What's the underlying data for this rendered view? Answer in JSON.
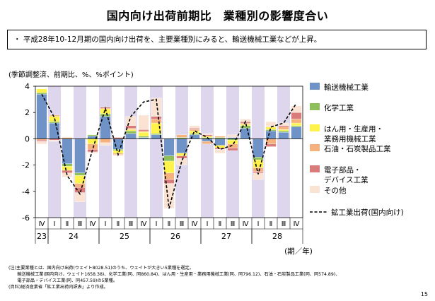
{
  "title": "国内向け出荷前期比　業種別の影響度合い",
  "summary": "・ 平成28年10-12月期の国内向け出荷を、主要業種別にみると、輸送機械工業などが上昇。",
  "unit_label": "(季節調整済、前期比、%、%ポイント)",
  "notes": [
    "(注)主要業種とは、国内向け出荷(ウェイト8028.51)のうち、ウェイトが大きい5業種を選定。",
    "　　輸送機械工業(国内向け、ウェイト1658.38)、化学工業(同、同860.84)、はん用・生産用・業務用機械工業(同、同796.12)、石油・石炭製品工業(同、同574.89)、",
    "　　電子部品・デバイス工業(同、同457.59)の5業種。",
    "(資料)経済産業省「鉱工業出荷内訳表」より作成。"
  ],
  "page_number": "15",
  "colors": {
    "transport": "#6f93c6",
    "chemical": "#8fbf5a",
    "machinery": "#fff24a",
    "petroleum": "#f5b27e",
    "electronic": "#d97b7b",
    "other": "#fbe3d4",
    "shade": "#ddd6ec",
    "line": "#000000"
  },
  "chart_data": {
    "type": "bar",
    "stacked": true,
    "ylim": [
      -6,
      4
    ],
    "yticks": [
      -6,
      -4,
      -2,
      0,
      2,
      4
    ],
    "quarter_labels": [
      "Ⅳ",
      "Ⅰ",
      "Ⅱ",
      "Ⅲ",
      "Ⅳ",
      "Ⅰ",
      "Ⅱ",
      "Ⅲ",
      "Ⅳ",
      "Ⅰ",
      "Ⅱ",
      "Ⅲ",
      "Ⅳ",
      "Ⅰ",
      "Ⅱ",
      "Ⅲ",
      "Ⅳ",
      "Ⅰ",
      "Ⅱ",
      "Ⅲ",
      "Ⅳ"
    ],
    "year_labels": [
      {
        "label": "23",
        "start": 0,
        "end": 0
      },
      {
        "label": "24",
        "start": 1,
        "end": 4
      },
      {
        "label": "25",
        "start": 5,
        "end": 8
      },
      {
        "label": "26",
        "start": 9,
        "end": 12
      },
      {
        "label": "27",
        "start": 13,
        "end": 16
      },
      {
        "label": "28",
        "start": 17,
        "end": 20
      }
    ],
    "period_label": "(期／年)",
    "shaded_periods": [
      1,
      3,
      5,
      7,
      9,
      11,
      13,
      15,
      17,
      19
    ],
    "series": [
      {
        "key": "transport",
        "name": "輸送機械工業",
        "values": [
          3.4,
          1.2,
          -1.9,
          -2.6,
          0.2,
          1.7,
          -0.8,
          0.4,
          0.1,
          0.3,
          -1.3,
          -1.1,
          0.3,
          -0.2,
          -0.5,
          0.1,
          0.8,
          -1.4,
          0.6,
          0.5,
          0.9
        ]
      },
      {
        "key": "chemical",
        "name": "化学工業",
        "values": [
          0.1,
          0.1,
          -0.2,
          -0.2,
          0.1,
          0.2,
          -0.1,
          0.2,
          0.1,
          0.1,
          -0.4,
          0.1,
          0.1,
          0.1,
          0.1,
          -0.1,
          0.2,
          -0.2,
          0.1,
          0.1,
          0.1
        ]
      },
      {
        "key": "machinery",
        "name": "はん用・生産用・業務用機械工業",
        "values": [
          0.3,
          0.4,
          -0.3,
          -0.6,
          -0.4,
          0.4,
          -0.2,
          0.1,
          0.3,
          0.8,
          -0.9,
          -0.2,
          0.2,
          0.1,
          -0.2,
          -0.3,
          0.1,
          -0.6,
          0.2,
          0.1,
          0.2
        ]
      },
      {
        "key": "petroleum",
        "name": "石油・石炭製品工業",
        "values": [
          -0.1,
          0.1,
          0.1,
          -0.3,
          -0.4,
          -0.3,
          -0.1,
          0.1,
          0.1,
          0.3,
          -0.5,
          0.2,
          0.1,
          -0.2,
          0.1,
          -0.3,
          0.1,
          -0.3,
          -0.4,
          0.2,
          0.3
        ]
      },
      {
        "key": "electronic",
        "name": "電子部品・デバイス工業",
        "values": [
          -0.1,
          -0.1,
          -0.2,
          -0.4,
          -0.2,
          0.1,
          0.1,
          0.2,
          0.1,
          0.2,
          -0.3,
          -0.2,
          0.1,
          0.1,
          -0.1,
          -0.2,
          0.1,
          -0.1,
          -0.2,
          0.1,
          0.5
        ]
      },
      {
        "key": "other",
        "name": "その他",
        "values": [
          -0.2,
          -0.1,
          -0.3,
          -0.7,
          -0.1,
          -0.2,
          -0.1,
          0.7,
          1.1,
          1.4,
          -1.9,
          -0.5,
          0.2,
          0.1,
          -0.3,
          0.2,
          0.2,
          -0.5,
          0.4,
          0.2,
          0.5
        ]
      }
    ],
    "line": {
      "name": "鉱工業出荷(国内向け)",
      "values": [
        3.4,
        1.6,
        -2.8,
        -4.2,
        -0.8,
        2.3,
        -1.2,
        1.7,
        2.8,
        3.0,
        -5.3,
        -1.7,
        0.6,
        0.1,
        -0.8,
        -0.5,
        1.3,
        -2.7,
        0.9,
        1.2,
        2.7
      ]
    },
    "legend": [
      {
        "key": "transport",
        "label_lines": [
          "輸送機械工業"
        ]
      },
      {
        "key": "chemical",
        "label_lines": [
          "化学工業"
        ]
      },
      {
        "key": "machinery",
        "label_lines": [
          "はん用・生産用・",
          "業務用機械工業"
        ]
      },
      {
        "key": "petroleum",
        "label_lines": [
          "石油・石炭製品工業"
        ]
      },
      {
        "key": "electronic",
        "label_lines": [
          "電子部品・",
          "デバイス工業"
        ]
      },
      {
        "key": "other",
        "label_lines": [
          "その他"
        ]
      },
      {
        "key": "line",
        "label_lines": [
          "鉱工業出荷(国内向け)"
        ]
      }
    ]
  }
}
